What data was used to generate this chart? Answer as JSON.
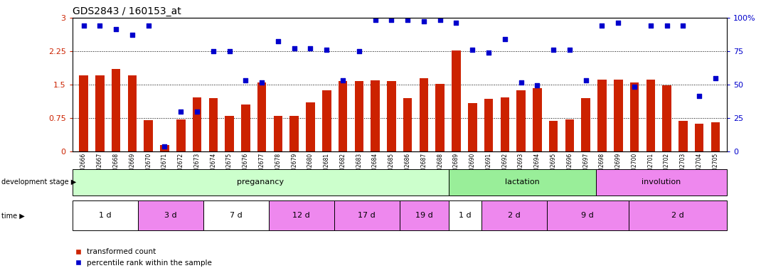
{
  "title": "GDS2843 / 160153_at",
  "samples": [
    "GSM202666",
    "GSM202667",
    "GSM202668",
    "GSM202669",
    "GSM202670",
    "GSM202671",
    "GSM202672",
    "GSM202673",
    "GSM202674",
    "GSM202675",
    "GSM202676",
    "GSM202677",
    "GSM202678",
    "GSM202679",
    "GSM202680",
    "GSM202681",
    "GSM202682",
    "GSM202683",
    "GSM202684",
    "GSM202685",
    "GSM202686",
    "GSM202687",
    "GSM202688",
    "GSM202689",
    "GSM202690",
    "GSM202691",
    "GSM202692",
    "GSM202693",
    "GSM202694",
    "GSM202695",
    "GSM202696",
    "GSM202697",
    "GSM202698",
    "GSM202699",
    "GSM202700",
    "GSM202701",
    "GSM202702",
    "GSM202703",
    "GSM202704",
    "GSM202705"
  ],
  "bar_values": [
    1.7,
    1.7,
    1.85,
    1.7,
    0.7,
    0.15,
    0.72,
    1.22,
    1.2,
    0.8,
    1.05,
    1.55,
    0.8,
    0.8,
    1.1,
    1.38,
    1.58,
    1.58,
    1.6,
    1.58,
    1.2,
    1.65,
    1.52,
    2.27,
    1.08,
    1.18,
    1.22,
    1.38,
    1.42,
    0.68,
    0.72,
    1.2,
    1.62,
    1.62,
    1.55,
    1.62,
    1.48,
    0.68,
    0.62,
    0.65
  ],
  "percentile_values_scaled": [
    2.82,
    2.82,
    2.75,
    2.62,
    2.82,
    0.12,
    0.9,
    0.9,
    2.25,
    2.25,
    1.6,
    1.55,
    2.48,
    2.32,
    2.32,
    2.28,
    1.6,
    2.25,
    2.95,
    2.95,
    2.95,
    2.92,
    2.95,
    2.88,
    2.28,
    2.22,
    2.52,
    1.55,
    1.48,
    2.28,
    2.28,
    1.6,
    2.82,
    2.88,
    1.45,
    2.82,
    2.82,
    2.82,
    1.25,
    1.65
  ],
  "ylim_left": [
    0,
    3.0
  ],
  "ylim_right": [
    0,
    100
  ],
  "yticks_left": [
    0,
    0.75,
    1.5,
    2.25,
    3.0
  ],
  "ytick_labels_left": [
    "0",
    "0.75",
    "1.5",
    "2.25",
    "3"
  ],
  "yticks_right": [
    0,
    25,
    50,
    75,
    100
  ],
  "ytick_labels_right": [
    "0",
    "25",
    "50",
    "75",
    "100%"
  ],
  "bar_color": "#cc2200",
  "dot_color": "#0000cc",
  "stage_boundaries": [
    {
      "label": "preganancy",
      "start": 0,
      "end": 23,
      "color": "#ccffcc"
    },
    {
      "label": "lactation",
      "start": 23,
      "end": 32,
      "color": "#99ee99"
    },
    {
      "label": "involution",
      "start": 32,
      "end": 40,
      "color": "#ee88ee"
    }
  ],
  "time_groups": [
    {
      "label": "1 d",
      "start": 0,
      "end": 4,
      "color": "#ffffff"
    },
    {
      "label": "3 d",
      "start": 4,
      "end": 8,
      "color": "#ee88ee"
    },
    {
      "label": "7 d",
      "start": 8,
      "end": 12,
      "color": "#ffffff"
    },
    {
      "label": "12 d",
      "start": 12,
      "end": 16,
      "color": "#ee88ee"
    },
    {
      "label": "17 d",
      "start": 16,
      "end": 20,
      "color": "#ee88ee"
    },
    {
      "label": "19 d",
      "start": 20,
      "end": 23,
      "color": "#ee88ee"
    },
    {
      "label": "1 d",
      "start": 23,
      "end": 25,
      "color": "#ffffff"
    },
    {
      "label": "2 d",
      "start": 25,
      "end": 29,
      "color": "#ee88ee"
    },
    {
      "label": "9 d",
      "start": 29,
      "end": 34,
      "color": "#ee88ee"
    },
    {
      "label": "2 d",
      "start": 34,
      "end": 40,
      "color": "#ee88ee"
    }
  ],
  "legend_items": [
    {
      "label": "transformed count",
      "color": "#cc2200"
    },
    {
      "label": "percentile rank within the sample",
      "color": "#0000cc"
    }
  ]
}
